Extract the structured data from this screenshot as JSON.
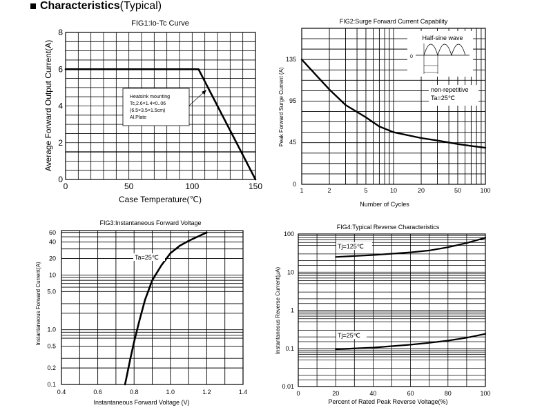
{
  "header": {
    "title": "Characteristics",
    "subtitle": "(Typical)"
  },
  "chart_data": [
    {
      "type": "line",
      "title": "FIG1:Io-Tc Curve",
      "xlabel": "Case Temperature(℃)",
      "ylabel": "Average Forward Output Current(A)",
      "xlim": [
        0,
        150
      ],
      "ylim": [
        0,
        8
      ],
      "xticks": [
        "0",
        "50",
        "100",
        "150"
      ],
      "yticks": [
        "0",
        "2",
        "4",
        "6",
        "8"
      ],
      "grid": true,
      "series": [
        {
          "x": [
            0,
            105,
            150
          ],
          "y": [
            6,
            6,
            0
          ]
        },
        {
          "x": [
            0,
            150
          ],
          "y": [
            1.5,
            1.5
          ]
        }
      ],
      "annotation": [
        "Heatsink  mounting",
        "Tc,2.6×1.4×0..06",
        "(6.5×3.5×1.5cm)",
        "Al.Plate"
      ]
    },
    {
      "type": "line",
      "title": "FIG2:Surge Forward Current Capability",
      "xlabel": "Number of Cycles",
      "ylabel": "Peak Forward Surge Current (A)",
      "xscale": "log",
      "xlim": [
        1,
        100
      ],
      "xticks": [
        "1",
        "2",
        "5",
        "10",
        "20",
        "50",
        "100"
      ],
      "yticks": [
        "0",
        "45",
        "95",
        "135"
      ],
      "grid": true,
      "series": [
        {
          "x": [
            1,
            1.5,
            2,
            3,
            5,
            7,
            10,
            20,
            30,
            50,
            70,
            100
          ],
          "y": [
            135,
            118,
            106,
            90,
            75,
            64,
            57,
            50,
            47,
            43,
            41,
            39
          ]
        }
      ],
      "inset": {
        "title": "Half-sine wave",
        "zero_label": "0"
      },
      "annotation": [
        "non-repetitive",
        "Ta=25℃"
      ]
    },
    {
      "type": "line",
      "title": "FIG3:Instantaneous Forward Voltage",
      "xlabel": "Instantaneous Forward Voltage (V)",
      "ylabel": "Instantaneous Forward Current(A)",
      "xlim": [
        0.4,
        1.4
      ],
      "yscale": "log",
      "ylim": [
        0.1,
        60
      ],
      "xticks": [
        "0.4",
        "0.6",
        "0.8",
        "1.0",
        "1.2",
        "1.4"
      ],
      "yticks": [
        "0.1",
        "0.2",
        "0.5",
        "1.0",
        "5.0",
        "10",
        "20",
        "40",
        "60"
      ],
      "grid": true,
      "series": [
        {
          "name": "Ta=25℃",
          "x": [
            0.75,
            0.78,
            0.8,
            0.83,
            0.86,
            0.9,
            0.95,
            1.0,
            1.05,
            1.1,
            1.2
          ],
          "y": [
            0.1,
            0.3,
            0.6,
            1.5,
            3.5,
            8,
            15,
            25,
            34,
            42,
            60
          ]
        }
      ]
    },
    {
      "type": "line",
      "title": "FIG4:Typical Reverse Characteristics",
      "xlabel": "Percent of Rated Peak Reverse Voltage(%)",
      "ylabel": "Instantaneous Reverse Current(μA)",
      "xlim": [
        0,
        100
      ],
      "yscale": "log",
      "ylim": [
        0.01,
        100
      ],
      "xticks": [
        "0",
        "20",
        "40",
        "60",
        "80",
        "100"
      ],
      "yticks": [
        "0.01",
        "0.1",
        "1",
        "10",
        "100"
      ],
      "grid": true,
      "series": [
        {
          "name": "Tj=125℃",
          "x": [
            20,
            40,
            60,
            70,
            80,
            90,
            100
          ],
          "y": [
            25,
            28,
            33,
            37,
            45,
            58,
            80
          ]
        },
        {
          "name": "Tj=25℃",
          "x": [
            20,
            40,
            60,
            70,
            80,
            90,
            100
          ],
          "y": [
            0.095,
            0.105,
            0.125,
            0.14,
            0.16,
            0.19,
            0.24
          ]
        }
      ]
    }
  ]
}
